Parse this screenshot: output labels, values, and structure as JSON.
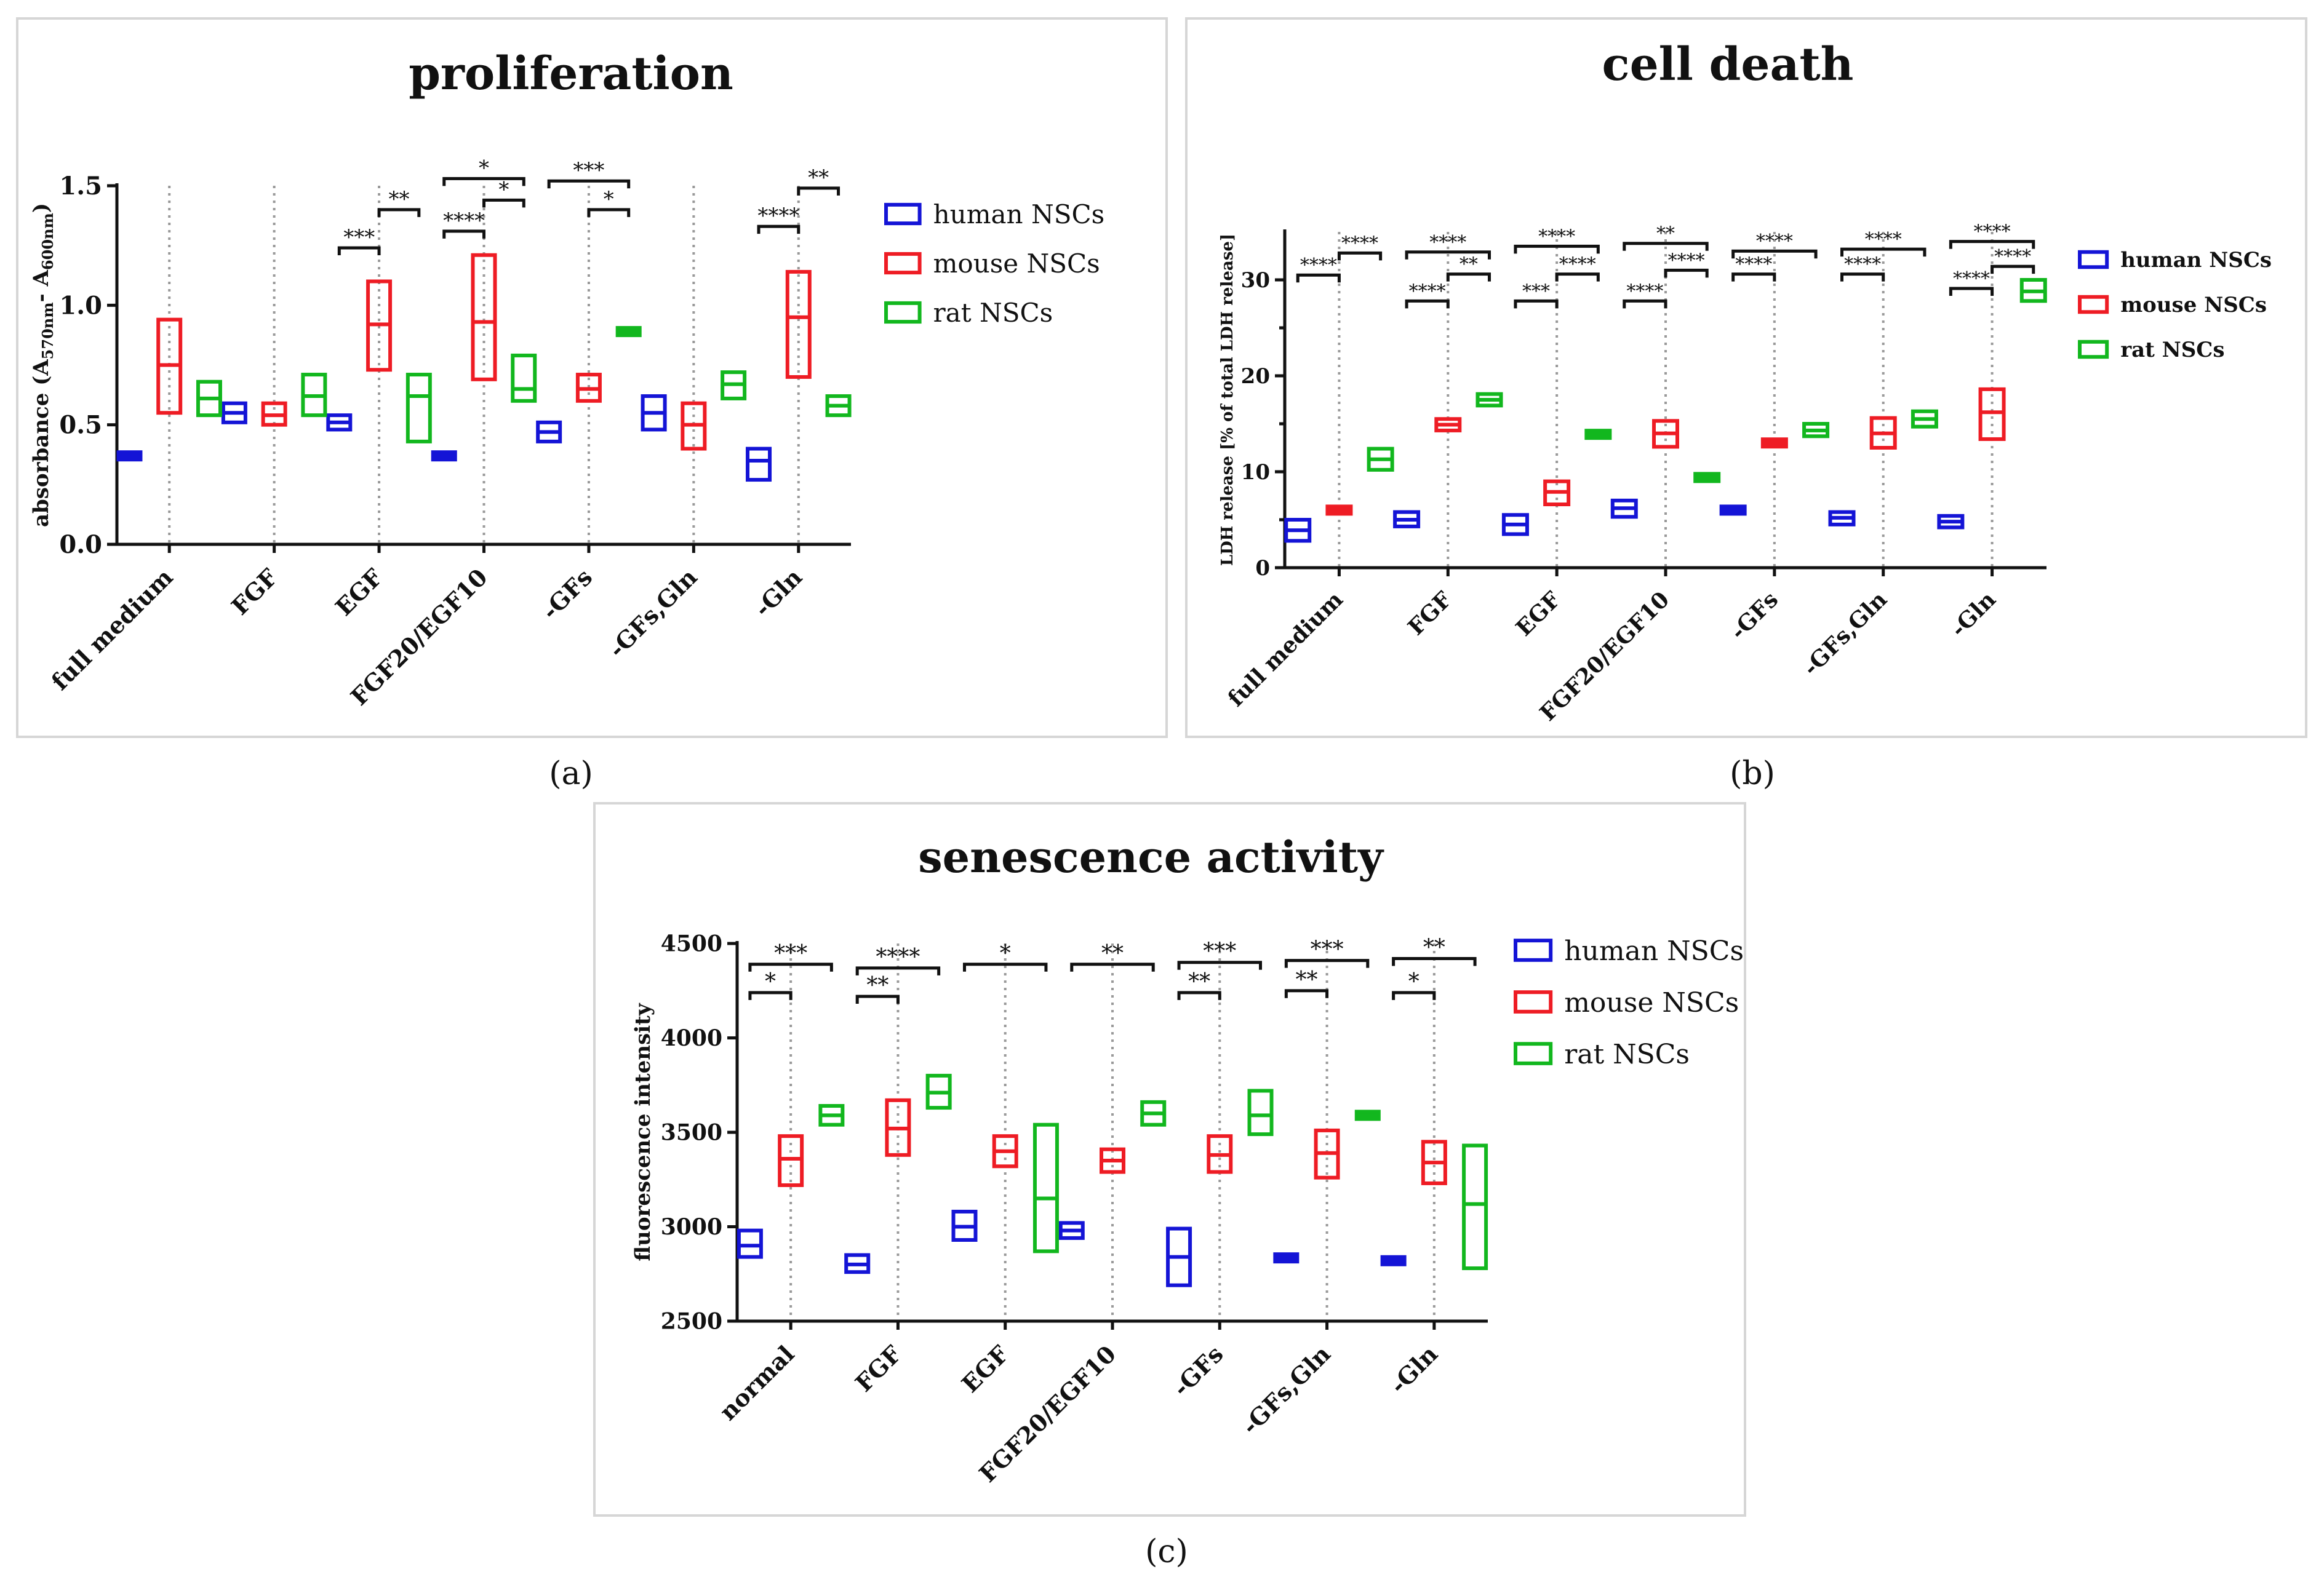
{
  "colors": {
    "human": "#1414d6",
    "mouse": "#ee1c24",
    "rat": "#12b71e"
  },
  "captions": [
    "(a)",
    "(b)",
    "(c)"
  ],
  "chart_data": [
    {
      "type": "box",
      "title": "proliferation",
      "ylabel_main": "absorbance (A",
      "ylabel_sub1": "570nm",
      "ylabel_mid": "- A",
      "ylabel_sub2": "600nm",
      "ylabel_end": ")",
      "ylim": [
        0,
        1.5
      ],
      "yticks": [
        0,
        0.5,
        1.0,
        1.5
      ],
      "ytick_labels": [
        "0.0",
        "0.5",
        "1.0",
        "1.5"
      ],
      "categories": [
        "full medium",
        "FGF",
        "EGF",
        "FGF20/EGF10",
        "-GFs",
        "-GFs,Gln",
        "-Gln"
      ],
      "series": [
        {
          "name": "human NSCs",
          "color_key": "human",
          "boxes": [
            [
              0.36,
              0.37,
              0.38
            ],
            [
              0.51,
              0.55,
              0.59
            ],
            [
              0.48,
              0.51,
              0.54
            ],
            [
              0.36,
              0.37,
              0.38
            ],
            [
              0.43,
              0.47,
              0.51
            ],
            [
              0.48,
              0.55,
              0.62
            ],
            [
              0.27,
              0.35,
              0.4
            ]
          ]
        },
        {
          "name": "mouse NSCs",
          "color_key": "mouse",
          "boxes": [
            [
              0.55,
              0.75,
              0.94
            ],
            [
              0.5,
              0.54,
              0.59
            ],
            [
              0.73,
              0.92,
              1.1
            ],
            [
              0.69,
              0.93,
              1.21
            ],
            [
              0.6,
              0.65,
              0.71
            ],
            [
              0.4,
              0.5,
              0.59
            ],
            [
              0.7,
              0.95,
              1.14
            ]
          ]
        },
        {
          "name": "rat NSCs",
          "color_key": "rat",
          "boxes": [
            [
              0.54,
              0.61,
              0.68
            ],
            [
              0.54,
              0.62,
              0.71
            ],
            [
              0.43,
              0.62,
              0.71
            ],
            [
              0.6,
              0.65,
              0.79
            ],
            [
              0.88,
              0.89,
              0.9
            ],
            [
              0.61,
              0.67,
              0.72
            ],
            [
              0.54,
              0.58,
              0.62
            ]
          ]
        }
      ],
      "annotations": [
        {
          "cat": 2,
          "from": 0,
          "to": 1,
          "level": 1.24,
          "text": "***"
        },
        {
          "cat": 2,
          "from": 1,
          "to": 2,
          "level": 1.4,
          "text": "**"
        },
        {
          "cat": 3,
          "from": 0,
          "to": 1,
          "level": 1.31,
          "text": "****"
        },
        {
          "cat": 3,
          "from": 0,
          "to": 2,
          "level": 1.53,
          "text": "*"
        },
        {
          "cat": 3,
          "from": 1,
          "to": 2,
          "level": 1.44,
          "text": "*"
        },
        {
          "cat": 4,
          "from": 0,
          "to": 2,
          "level": 1.52,
          "text": "***"
        },
        {
          "cat": 4,
          "from": 1,
          "to": 2,
          "level": 1.4,
          "text": "*"
        },
        {
          "cat": 6,
          "from": 0,
          "to": 1,
          "level": 1.33,
          "text": "****"
        },
        {
          "cat": 6,
          "from": 1,
          "to": 2,
          "level": 1.49,
          "text": "**"
        }
      ]
    },
    {
      "type": "box",
      "title": "cell death",
      "ylabel": "LDH release [% of total LDH release]",
      "ylim": [
        0,
        35
      ],
      "yticks": [
        0,
        10,
        20,
        30
      ],
      "ytick_labels": [
        "0",
        "10",
        "20",
        "30"
      ],
      "categories": [
        "full medium",
        "FGF",
        "EGF",
        "FGF20/EGF10",
        "-GFs",
        "-GFs,Gln",
        "-Gln"
      ],
      "series": [
        {
          "name": "human NSCs",
          "color_key": "human",
          "boxes": [
            [
              2.8,
              3.9,
              5.0
            ],
            [
              4.3,
              5.0,
              5.8
            ],
            [
              3.5,
              4.5,
              5.5
            ],
            [
              5.3,
              6.2,
              7.0
            ],
            [
              5.6,
              6.0,
              6.4
            ],
            [
              4.5,
              5.2,
              5.8
            ],
            [
              4.2,
              4.8,
              5.4
            ]
          ]
        },
        {
          "name": "mouse NSCs",
          "color_key": "mouse",
          "boxes": [
            [
              5.7,
              6.0,
              6.3
            ],
            [
              14.3,
              14.9,
              15.5
            ],
            [
              6.6,
              7.9,
              9.0
            ],
            [
              12.6,
              14.0,
              15.3
            ],
            [
              12.7,
              13.0,
              13.6
            ],
            [
              12.5,
              14.0,
              15.6
            ],
            [
              13.4,
              16.2,
              18.6
            ]
          ]
        },
        {
          "name": "rat NSCs",
          "color_key": "rat",
          "boxes": [
            [
              10.2,
              11.3,
              12.4
            ],
            [
              16.9,
              17.5,
              18.1
            ],
            [
              13.6,
              13.9,
              14.2
            ],
            [
              9.1,
              9.4,
              9.7
            ],
            [
              13.7,
              14.3,
              15.0
            ],
            [
              14.7,
              15.5,
              16.3
            ],
            [
              27.8,
              28.8,
              30.0
            ]
          ]
        }
      ],
      "annotations": [
        {
          "cat": 0,
          "from": 0,
          "to": 1,
          "level": 30.5,
          "text": "****"
        },
        {
          "cat": 0,
          "from": 1,
          "to": 2,
          "level": 32.8,
          "text": "****"
        },
        {
          "cat": 1,
          "from": 0,
          "to": 1,
          "level": 27.8,
          "text": "****"
        },
        {
          "cat": 1,
          "from": 1,
          "to": 2,
          "level": 30.6,
          "text": "**"
        },
        {
          "cat": 1,
          "from": 0,
          "to": 2,
          "level": 32.9,
          "text": "****"
        },
        {
          "cat": 2,
          "from": 0,
          "to": 1,
          "level": 27.8,
          "text": "***"
        },
        {
          "cat": 2,
          "from": 1,
          "to": 2,
          "level": 30.6,
          "text": "****"
        },
        {
          "cat": 2,
          "from": 0,
          "to": 2,
          "level": 33.5,
          "text": "****"
        },
        {
          "cat": 3,
          "from": 0,
          "to": 1,
          "level": 27.8,
          "text": "****"
        },
        {
          "cat": 3,
          "from": 1,
          "to": 2,
          "level": 31.0,
          "text": "****"
        },
        {
          "cat": 3,
          "from": 0,
          "to": 2,
          "level": 33.8,
          "text": "**"
        },
        {
          "cat": 4,
          "from": 0,
          "to": 1,
          "level": 30.6,
          "text": "****"
        },
        {
          "cat": 4,
          "from": 0,
          "to": 2,
          "level": 33.0,
          "text": "****"
        },
        {
          "cat": 5,
          "from": 0,
          "to": 1,
          "level": 30.6,
          "text": "****"
        },
        {
          "cat": 5,
          "from": 0,
          "to": 2,
          "level": 33.2,
          "text": "****"
        },
        {
          "cat": 6,
          "from": 0,
          "to": 1,
          "level": 29.1,
          "text": "****"
        },
        {
          "cat": 6,
          "from": 1,
          "to": 2,
          "level": 31.4,
          "text": "****"
        },
        {
          "cat": 6,
          "from": 0,
          "to": 2,
          "level": 34.0,
          "text": "****"
        }
      ]
    },
    {
      "type": "box",
      "title": "senescence activity",
      "ylabel": "fluorescence intensity",
      "ylim": [
        2500,
        4500
      ],
      "yticks": [
        2500,
        3000,
        3500,
        4000,
        4500
      ],
      "ytick_labels": [
        "2500",
        "3000",
        "3500",
        "4000",
        "4500"
      ],
      "categories": [
        "normal",
        "FGF",
        "EGF",
        "FGF20/EGF10",
        "-GFs",
        "-GFs,Gln",
        "-Gln"
      ],
      "series": [
        {
          "name": "human NSCs",
          "color_key": "human",
          "boxes": [
            [
              2840,
              2900,
              2980
            ],
            [
              2760,
              2800,
              2850
            ],
            [
              2930,
              3000,
              3080
            ],
            [
              2940,
              2980,
              3020
            ],
            [
              2690,
              2840,
              2990
            ],
            [
              2810,
              2835,
              2860
            ],
            [
              2800,
              2820,
              2840
            ]
          ]
        },
        {
          "name": "mouse NSCs",
          "color_key": "mouse",
          "boxes": [
            [
              3220,
              3360,
              3480
            ],
            [
              3380,
              3520,
              3670
            ],
            [
              3320,
              3400,
              3480
            ],
            [
              3290,
              3350,
              3410
            ],
            [
              3290,
              3380,
              3480
            ],
            [
              3260,
              3390,
              3510
            ],
            [
              3230,
              3340,
              3450
            ]
          ]
        },
        {
          "name": "rat NSCs",
          "color_key": "rat",
          "boxes": [
            [
              3540,
              3590,
              3640
            ],
            [
              3630,
              3710,
              3800
            ],
            [
              2870,
              3150,
              3540
            ],
            [
              3540,
              3600,
              3660
            ],
            [
              3490,
              3590,
              3720
            ],
            [
              3570,
              3590,
              3610
            ],
            [
              2780,
              3120,
              3430
            ]
          ]
        }
      ],
      "annotations": [
        {
          "cat": 0,
          "from": 0,
          "to": 1,
          "level": 4240,
          "text": "*"
        },
        {
          "cat": 0,
          "from": 0,
          "to": 2,
          "level": 4390,
          "text": "***"
        },
        {
          "cat": 1,
          "from": 0,
          "to": 1,
          "level": 4220,
          "text": "**"
        },
        {
          "cat": 1,
          "from": 0,
          "to": 2,
          "level": 4370,
          "text": "****"
        },
        {
          "cat": 2,
          "from": 0,
          "to": 2,
          "level": 4390,
          "text": "*"
        },
        {
          "cat": 3,
          "from": 0,
          "to": 2,
          "level": 4390,
          "text": "**"
        },
        {
          "cat": 4,
          "from": 0,
          "to": 1,
          "level": 4240,
          "text": "**"
        },
        {
          "cat": 4,
          "from": 0,
          "to": 2,
          "level": 4400,
          "text": "***"
        },
        {
          "cat": 5,
          "from": 0,
          "to": 1,
          "level": 4250,
          "text": "**"
        },
        {
          "cat": 5,
          "from": 0,
          "to": 2,
          "level": 4410,
          "text": "***"
        },
        {
          "cat": 6,
          "from": 0,
          "to": 1,
          "level": 4240,
          "text": "*"
        },
        {
          "cat": 6,
          "from": 0,
          "to": 2,
          "level": 4420,
          "text": "**"
        }
      ]
    }
  ]
}
